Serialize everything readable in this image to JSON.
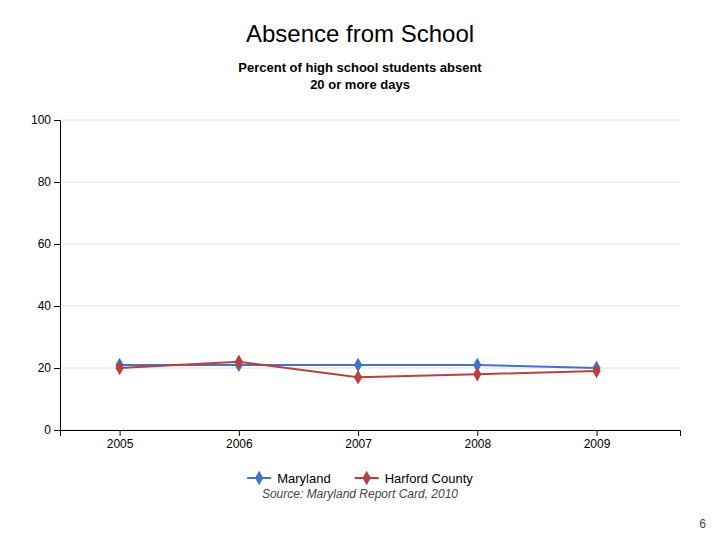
{
  "chart_data": {
    "type": "line",
    "title": "Absence from School",
    "subtitle": "Percent of high school students absent\n20 or more days",
    "x": [
      2005,
      2006,
      2007,
      2008,
      2009
    ],
    "series": [
      {
        "name": "Maryland",
        "color": "#4472c4",
        "values": [
          21,
          21,
          21,
          21,
          20
        ]
      },
      {
        "name": "Harford County",
        "color": "#b94040",
        "values": [
          20,
          22,
          17,
          18,
          19
        ]
      }
    ],
    "xlim": [
      2004.5,
      2009.7
    ],
    "xticks": [
      2005,
      2006,
      2007,
      2008,
      2009
    ],
    "ylim": [
      0,
      100
    ],
    "yticks": [
      0,
      20,
      40,
      60,
      80,
      100
    ],
    "grid": true,
    "legend": "bottom",
    "marker": "diamond",
    "annotations": [
      "Source: Maryland Report Card, 2010",
      "6"
    ]
  }
}
